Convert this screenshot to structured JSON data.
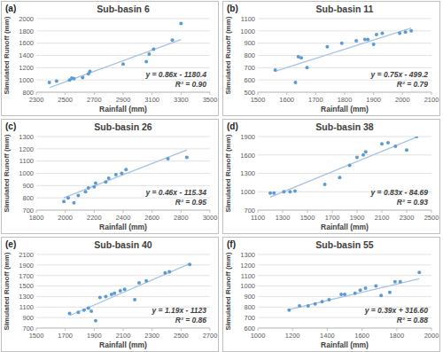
{
  "chart_data": [
    {
      "type": "scatter",
      "panel_label": "(a)",
      "title": "Sub-basin 6",
      "x_label": "Rainfall (mm)",
      "y_label": "Simulated Runoff (mm)",
      "color": "#5b9bd5",
      "grid": true,
      "x": [
        2390,
        2440,
        2530,
        2545,
        2560,
        2620,
        2660,
        2670,
        2900,
        3060,
        3080,
        3110,
        3240,
        3300
      ],
      "values": [
        960,
        980,
        1000,
        1030,
        1020,
        1040,
        1100,
        1140,
        1260,
        1300,
        1420,
        1500,
        1650,
        1920
      ],
      "xlim": [
        2300,
        3500
      ],
      "xticks": [
        2300,
        2500,
        2700,
        2900,
        3100,
        3300,
        3500
      ],
      "ylim": [
        800,
        2000
      ],
      "yticks": [
        800,
        1000,
        1200,
        1400,
        1600,
        1800,
        2000
      ],
      "trend_line": {
        "slope": 0.86,
        "intercept": -1180.4
      },
      "equation": "y = 0.86x - 1180.4",
      "r_squared": "R² = 0.90"
    },
    {
      "type": "scatter",
      "panel_label": "(b)",
      "title": "Sub-basin 11",
      "x_label": "Rainfall (mm)",
      "y_label": "Simulated Runoff (mm)",
      "color": "#5b9bd5",
      "grid": true,
      "x": [
        1560,
        1630,
        1640,
        1650,
        1670,
        1740,
        1790,
        1840,
        1870,
        1880,
        1900,
        1910,
        1930,
        1990,
        2010,
        2030
      ],
      "values": [
        680,
        580,
        790,
        780,
        700,
        870,
        900,
        920,
        930,
        930,
        890,
        970,
        980,
        980,
        990,
        1000
      ],
      "xlim": [
        1500,
        2100
      ],
      "xticks": [
        1500,
        1600,
        1700,
        1800,
        1900,
        2000,
        2100
      ],
      "ylim": [
        500,
        1100
      ],
      "yticks": [
        500,
        600,
        700,
        800,
        900,
        1000,
        1100
      ],
      "trend_line": {
        "slope": 0.75,
        "intercept": -499.2
      },
      "equation": "y = 0.75x - 499.2",
      "r_squared": "R² = 0.79"
    },
    {
      "type": "scatter",
      "panel_label": "(c)",
      "title": "Sub-basin 26",
      "x_label": "Rainfall (mm)",
      "y_label": "Simulated Runoff (mm)",
      "color": "#5b9bd5",
      "grid": true,
      "x": [
        1990,
        2020,
        2060,
        2090,
        2140,
        2160,
        2200,
        2210,
        2280,
        2300,
        2350,
        2390,
        2420,
        2710,
        2840
      ],
      "values": [
        770,
        800,
        760,
        820,
        850,
        880,
        890,
        920,
        930,
        960,
        990,
        1000,
        1030,
        1120,
        1130
      ],
      "xlim": [
        1800,
        3000
      ],
      "xticks": [
        1800,
        2000,
        2200,
        2400,
        2600,
        2800,
        3000
      ],
      "ylim": [
        700,
        1300
      ],
      "yticks": [
        700,
        800,
        900,
        1000,
        1100,
        1200,
        1300
      ],
      "trend_line": {
        "slope": 0.46,
        "intercept": -115.34
      },
      "equation": "y = 0.46x - 115.34",
      "r_squared": "R² = 0.95"
    },
    {
      "type": "scatter",
      "panel_label": "(d)",
      "title": "Sub-basin 38",
      "x_label": "Rainfall (mm)",
      "y_label": "Simulated Runoff (mm)",
      "color": "#5b9bd5",
      "grid": true,
      "x": [
        1200,
        1230,
        1310,
        1360,
        1400,
        1640,
        1760,
        1840,
        1900,
        1950,
        1970,
        2100,
        2150,
        2210,
        2300,
        2380
      ],
      "values": [
        980,
        980,
        1000,
        1000,
        1010,
        1120,
        1230,
        1430,
        1560,
        1600,
        1650,
        1780,
        1800,
        1740,
        1680,
        1900
      ],
      "xlim": [
        1100,
        2500
      ],
      "xticks": [
        1100,
        1300,
        1500,
        1700,
        1900,
        2100,
        2300,
        2500
      ],
      "ylim": [
        700,
        1900
      ],
      "yticks": [
        700,
        1000,
        1300,
        1600,
        1900
      ],
      "trend_line": {
        "slope": 0.83,
        "intercept": -84.69
      },
      "equation": "y = 0.83x - 84.69",
      "r_squared": "R² = 0.93"
    },
    {
      "type": "scatter",
      "panel_label": "(e)",
      "title": "Sub-basin 40",
      "x_label": "Rainfall (mm)",
      "y_label": "Simulated Runoff (mm)",
      "color": "#5b9bd5",
      "grid": true,
      "x": [
        1730,
        1790,
        1830,
        1860,
        1880,
        1910,
        1940,
        1980,
        2020,
        2040,
        2080,
        2110,
        2180,
        2210,
        2260,
        2390,
        2420,
        2560
      ],
      "values": [
        980,
        1000,
        1040,
        1080,
        1020,
        840,
        1280,
        1300,
        1340,
        1360,
        1410,
        1440,
        1240,
        1560,
        1600,
        1750,
        1770,
        1910
      ],
      "xlim": [
        1500,
        2700
      ],
      "xticks": [
        1500,
        1700,
        1900,
        2100,
        2300,
        2500,
        2700
      ],
      "ylim": [
        700,
        2100
      ],
      "yticks": [
        700,
        900,
        1100,
        1300,
        1500,
        1700,
        1900,
        2100
      ],
      "trend_line": {
        "slope": 1.19,
        "intercept": -1123
      },
      "equation": "y = 1.19x - 1123",
      "r_squared": "R² = 0.86"
    },
    {
      "type": "scatter",
      "panel_label": "(f)",
      "title": "Sub-basin 55",
      "x_label": "Rainfall (mm)",
      "y_label": "Simulated Runoff (mm)",
      "color": "#5b9bd5",
      "grid": true,
      "x": [
        1180,
        1240,
        1290,
        1330,
        1370,
        1410,
        1480,
        1500,
        1560,
        1590,
        1620,
        1680,
        1710,
        1760,
        1790,
        1820,
        1930
      ],
      "values": [
        770,
        810,
        810,
        830,
        850,
        870,
        920,
        920,
        930,
        960,
        980,
        1000,
        910,
        940,
        1040,
        1040,
        1130
      ],
      "xlim": [
        1000,
        2000
      ],
      "xticks": [
        1000,
        1200,
        1400,
        1600,
        1800,
        2000
      ],
      "ylim": [
        600,
        1300
      ],
      "yticks": [
        600,
        700,
        800,
        900,
        1000,
        1100,
        1200,
        1300
      ],
      "trend_line": {
        "slope": 0.39,
        "intercept": 316.6
      },
      "equation": "y = 0.39x + 316.60",
      "r_squared": "R² = 0.88"
    }
  ]
}
